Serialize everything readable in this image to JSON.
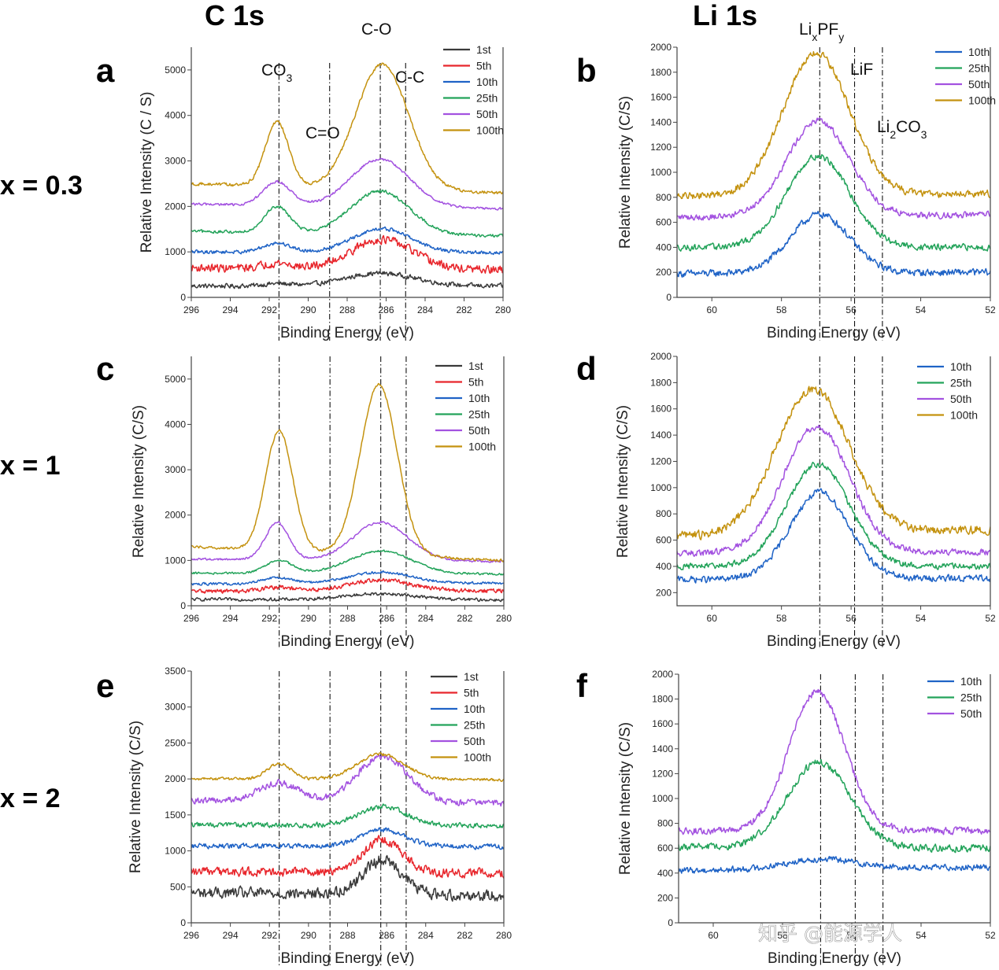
{
  "figure": {
    "columns": [
      {
        "name": "col-c1s",
        "label": "C 1s"
      },
      {
        "name": "col-li1s",
        "label": "Li 1s"
      }
    ],
    "rows": [
      {
        "name": "row-x03",
        "label": "x = 0.3"
      },
      {
        "name": "row-x1",
        "label": "x = 1"
      },
      {
        "name": "row-x2",
        "label": "x = 2"
      }
    ],
    "peak_labels": [
      {
        "name": "peak-label-co3",
        "text": "CO",
        "sub": "3"
      },
      {
        "name": "peak-label-c-eq-o",
        "text": "C=O"
      },
      {
        "name": "peak-label-c-o",
        "text": "C-O"
      },
      {
        "name": "peak-label-c-c",
        "text": "C-C"
      },
      {
        "name": "peak-label-lixpfy",
        "text": "Li",
        "sub": "x",
        "text2": "PF",
        "sub2": "y"
      },
      {
        "name": "peak-label-lif",
        "text": "LiF"
      },
      {
        "name": "peak-label-li2co3",
        "text": "Li",
        "sub": "2",
        "text2": "CO",
        "sub2": "3"
      }
    ],
    "watermark": "知乎 @能源学人",
    "colors": {
      "1st": "#3a3a3a",
      "5th": "#e8262c",
      "10th": "#1f63c6",
      "25th": "#23a35a",
      "50th": "#a352e0",
      "100th": "#c4920f"
    }
  },
  "chart_data": [
    {
      "panel": "a",
      "type": "line",
      "title": "C 1s, x = 0.3",
      "xlabel": "Binding Energy (eV)",
      "ylabel": "Relative Intensity (C / S)",
      "xlim": [
        296,
        280
      ],
      "ylim": [
        0,
        5500
      ],
      "xticks": [
        296,
        294,
        292,
        290,
        288,
        286,
        284,
        282,
        280
      ],
      "yticks": [
        0,
        1000,
        2000,
        3000,
        4000,
        5000
      ],
      "ref_lines": [
        291.5,
        288.9,
        286.3,
        285.0
      ],
      "series": [
        {
          "name": "1st",
          "baseline": 250,
          "tail": 250,
          "peaks": [
            [
              291.6,
              50,
              0.7
            ],
            [
              286.3,
              280,
              1.8
            ]
          ],
          "noise": 45
        },
        {
          "name": "5th",
          "baseline": 650,
          "tail": 600,
          "peaks": [
            [
              291.6,
              120,
              0.7
            ],
            [
              286.2,
              650,
              1.6
            ]
          ],
          "noise": 80
        },
        {
          "name": "10th",
          "baseline": 1000,
          "tail": 980,
          "peaks": [
            [
              291.6,
              200,
              0.7
            ],
            [
              286.2,
              520,
              1.5
            ]
          ],
          "noise": 35
        },
        {
          "name": "25th",
          "baseline": 1450,
          "tail": 1350,
          "peaks": [
            [
              291.6,
              580,
              0.65
            ],
            [
              286.3,
              950,
              1.5
            ]
          ],
          "noise": 30
        },
        {
          "name": "50th",
          "baseline": 2050,
          "tail": 1950,
          "peaks": [
            [
              291.6,
              520,
              0.7
            ],
            [
              286.3,
              1050,
              1.5
            ]
          ],
          "noise": 25
        },
        {
          "name": "100th",
          "baseline": 2500,
          "tail": 2300,
          "peaks": [
            [
              291.6,
              1420,
              0.6
            ],
            [
              286.2,
              2750,
              1.35
            ]
          ],
          "noise": 30
        }
      ],
      "legend": [
        "1st",
        "5th",
        "10th",
        "25th",
        "50th",
        "100th"
      ]
    },
    {
      "panel": "b",
      "type": "line",
      "title": "Li 1s, x = 0.3",
      "xlabel": "Binding Energy (eV)",
      "ylabel": "Relative Intensity (C/S)",
      "xlim": [
        61,
        52
      ],
      "ylim": [
        0,
        2000
      ],
      "xticks": [
        60,
        58,
        56,
        54,
        52
      ],
      "yticks": [
        0,
        200,
        400,
        600,
        800,
        1000,
        1200,
        1400,
        1600,
        1800,
        2000
      ],
      "ref_lines": [
        56.9,
        55.9,
        55.1
      ],
      "series": [
        {
          "name": "10th",
          "baseline": 190,
          "tail": 200,
          "peaks": [
            [
              56.9,
              470,
              0.85
            ]
          ],
          "noise": 25
        },
        {
          "name": "25th",
          "baseline": 400,
          "tail": 400,
          "peaks": [
            [
              56.95,
              730,
              0.9
            ]
          ],
          "noise": 22
        },
        {
          "name": "50th",
          "baseline": 640,
          "tail": 660,
          "peaks": [
            [
              56.95,
              760,
              0.9
            ]
          ],
          "noise": 22
        },
        {
          "name": "100th",
          "baseline": 810,
          "tail": 830,
          "peaks": [
            [
              57.0,
              1130,
              0.95
            ]
          ],
          "noise": 25
        }
      ],
      "legend": [
        "10th",
        "25th",
        "50th",
        "100th"
      ]
    },
    {
      "panel": "c",
      "type": "line",
      "title": "C 1s, x = 1",
      "xlabel": "Binding Energy (eV)",
      "ylabel": "Relative Intensity (C/S)",
      "xlim": [
        296,
        280
      ],
      "ylim": [
        0,
        5500
      ],
      "xticks": [
        296,
        294,
        292,
        290,
        288,
        286,
        284,
        282,
        280
      ],
      "yticks": [
        0,
        1000,
        2000,
        3000,
        4000,
        5000
      ],
      "ref_lines": [
        291.5,
        288.9,
        286.3,
        285.0
      ],
      "series": [
        {
          "name": "1st",
          "baseline": 140,
          "tail": 130,
          "peaks": [
            [
              286.3,
              130,
              1.8
            ]
          ],
          "noise": 30
        },
        {
          "name": "5th",
          "baseline": 320,
          "tail": 330,
          "peaks": [
            [
              291.6,
              80,
              0.8
            ],
            [
              286.3,
              240,
              1.6
            ]
          ],
          "noise": 40
        },
        {
          "name": "10th",
          "baseline": 480,
          "tail": 500,
          "peaks": [
            [
              291.6,
              130,
              0.8
            ],
            [
              286.3,
              250,
              1.6
            ]
          ],
          "noise": 25
        },
        {
          "name": "25th",
          "baseline": 720,
          "tail": 700,
          "peaks": [
            [
              291.5,
              280,
              0.7
            ],
            [
              286.3,
              500,
              1.6
            ]
          ],
          "noise": 20
        },
        {
          "name": "50th",
          "baseline": 1030,
          "tail": 980,
          "peaks": [
            [
              291.6,
              820,
              0.6
            ],
            [
              286.3,
              840,
              1.4
            ]
          ],
          "noise": 20
        },
        {
          "name": "100th",
          "baseline": 1300,
          "tail": 1000,
          "peaks": [
            [
              291.5,
              2650,
              0.7
            ],
            [
              286.4,
              3750,
              0.95
            ]
          ],
          "noise": 25
        }
      ],
      "legend": [
        "1st",
        "5th",
        "10th",
        "25th",
        "50th",
        "100th"
      ]
    },
    {
      "panel": "d",
      "type": "line",
      "title": "Li 1s, x = 1",
      "xlabel": "Binding Energy (eV)",
      "ylabel": "Relative Intensity (C/S)",
      "xlim": [
        61,
        52
      ],
      "ylim": [
        100,
        2000
      ],
      "xticks": [
        60,
        58,
        56,
        54,
        52
      ],
      "yticks": [
        200,
        400,
        600,
        800,
        1000,
        1200,
        1400,
        1600,
        1800,
        2000
      ],
      "ref_lines": [
        56.9,
        55.9,
        55.1
      ],
      "series": [
        {
          "name": "10th",
          "baseline": 300,
          "tail": 310,
          "peaks": [
            [
              56.9,
              660,
              0.85
            ]
          ],
          "noise": 22
        },
        {
          "name": "25th",
          "baseline": 400,
          "tail": 400,
          "peaks": [
            [
              56.95,
              780,
              0.9
            ]
          ],
          "noise": 20
        },
        {
          "name": "50th",
          "baseline": 500,
          "tail": 510,
          "peaks": [
            [
              57.0,
              960,
              0.95
            ]
          ],
          "noise": 22
        },
        {
          "name": "100th",
          "baseline": 630,
          "tail": 680,
          "peaks": [
            [
              57.1,
              1100,
              1.05
            ]
          ],
          "noise": 30
        }
      ],
      "legend": [
        "10th",
        "25th",
        "50th",
        "100th"
      ]
    },
    {
      "panel": "e",
      "type": "line",
      "title": "C 1s, x = 2",
      "xlabel": "Binding Energy (eV)",
      "ylabel": "Relative Intensity (C/S)",
      "xlim": [
        296,
        280
      ],
      "ylim": [
        0,
        3500
      ],
      "xticks": [
        296,
        294,
        292,
        290,
        288,
        286,
        284,
        282,
        280
      ],
      "yticks": [
        0,
        500,
        1000,
        1500,
        2000,
        2500,
        3000,
        3500
      ],
      "ref_lines": [
        291.5,
        288.9,
        286.3,
        285.0
      ],
      "series": [
        {
          "name": "1st",
          "baseline": 420,
          "tail": 380,
          "peaks": [
            [
              286.2,
              480,
              1.0
            ]
          ],
          "noise": 70
        },
        {
          "name": "5th",
          "baseline": 710,
          "tail": 690,
          "peaks": [
            [
              286.2,
              460,
              1.0
            ]
          ],
          "noise": 55
        },
        {
          "name": "10th",
          "baseline": 1070,
          "tail": 1060,
          "peaks": [
            [
              286.2,
              230,
              1.1
            ]
          ],
          "noise": 30
        },
        {
          "name": "25th",
          "baseline": 1360,
          "tail": 1350,
          "peaks": [
            [
              286.2,
              260,
              1.2
            ]
          ],
          "noise": 30
        },
        {
          "name": "50th",
          "baseline": 1700,
          "tail": 1660,
          "peaks": [
            [
              291.5,
              260,
              1.0
            ],
            [
              286.2,
              640,
              1.3
            ]
          ],
          "noise": 40
        },
        {
          "name": "100th",
          "baseline": 2000,
          "tail": 1990,
          "peaks": [
            [
              291.5,
              220,
              0.6
            ],
            [
              286.3,
              350,
              1.2
            ]
          ],
          "noise": 18
        }
      ],
      "legend": [
        "1st",
        "5th",
        "10th",
        "25th",
        "50th",
        "100th"
      ]
    },
    {
      "panel": "f",
      "type": "line",
      "title": "Li 1s, x = 2",
      "xlabel": "Binding Energy (eV)",
      "ylabel": "Relative Intensity (C/S)",
      "xlim": [
        61,
        52
      ],
      "ylim": [
        0,
        2000
      ],
      "xticks": [
        60,
        58,
        56,
        54,
        52
      ],
      "yticks": [
        0,
        200,
        400,
        600,
        800,
        1000,
        1200,
        1400,
        1600,
        1800,
        2000
      ],
      "ref_lines": [
        56.9,
        55.9,
        55.1
      ],
      "series": [
        {
          "name": "10th",
          "baseline": 420,
          "tail": 450,
          "peaks": [
            [
              56.9,
              80,
              1.0
            ]
          ],
          "noise": 22
        },
        {
          "name": "25th",
          "baseline": 610,
          "tail": 600,
          "peaks": [
            [
              56.95,
              690,
              0.9
            ]
          ],
          "noise": 25
        },
        {
          "name": "50th",
          "baseline": 740,
          "tail": 740,
          "peaks": [
            [
              57.0,
              1120,
              0.8
            ]
          ],
          "noise": 25
        }
      ],
      "legend": [
        "10th",
        "25th",
        "50th"
      ]
    }
  ]
}
